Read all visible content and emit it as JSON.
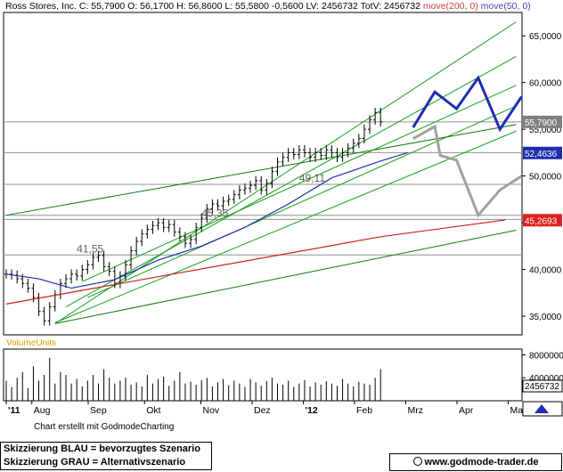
{
  "header": {
    "name": "Ross Stores, Inc.",
    "c": "C: 55,7900",
    "o": "O: 56,1700",
    "h": "H: 56,8600",
    "l": "L: 55,5800",
    "chg": "-0,5600",
    "lv": "LV: 2456732",
    "totv": "TotV: 2456732",
    "ma200": "move(200, 0)",
    "ma50": "move(50, 0)"
  },
  "chart_data": {
    "type": "line",
    "price_axis": {
      "ylim": [
        33,
        67.5
      ],
      "ticks": [
        35,
        40,
        45,
        50,
        55,
        60,
        65
      ],
      "tick_labels": [
        "35,0000",
        "40,0000",
        "45,0000",
        "50,0000",
        "55,0000",
        "60,0000",
        "65,0000"
      ]
    },
    "volume_axis": {
      "ylim": [
        0,
        9000000
      ],
      "ticks": [
        4000000,
        8000000
      ],
      "tick_labels": [
        "4000000",
        "8000000"
      ],
      "label": "VolumeUnits",
      "last_label": "2456732"
    },
    "x_labels": [
      "'11",
      "Aug",
      "Sep",
      "Okt",
      "Nov",
      "Dez",
      "'12",
      "Feb",
      "Mrz",
      "Apr",
      "Mai"
    ],
    "price_labels": [
      {
        "text": "55,7900",
        "value": 55.79,
        "color": "#808080"
      },
      {
        "text": "52,4636",
        "value": 52.4636,
        "color": "#1f2db0"
      },
      {
        "text": "45,2693",
        "value": 45.2693,
        "color": "#e02020"
      }
    ],
    "annotations": [
      {
        "text": "41,55",
        "value": 41.55
      },
      {
        "text": "45,35",
        "value": 45.35
      },
      {
        "text": "49,11",
        "value": 49.11
      }
    ],
    "horizontal_levels": [
      41.55,
      45.35,
      45.8,
      49.11,
      52.5,
      55.79
    ],
    "price_series": [
      39.5,
      39.4,
      39.0,
      38.5,
      38.0,
      37.0,
      35.5,
      34.5,
      36.0,
      37.3,
      38.5,
      39.0,
      39.5,
      39.3,
      40.0,
      40.5,
      41.3,
      41.5,
      40.3,
      39.8,
      38.5,
      39.3,
      40.5,
      42.0,
      43.0,
      43.8,
      44.3,
      44.7,
      45.0,
      44.5,
      44.8,
      44.0,
      43.5,
      42.8,
      43.2,
      44.5,
      45.5,
      46.5,
      47.0,
      46.8,
      47.3,
      47.5,
      48.0,
      48.5,
      48.7,
      49.0,
      49.5,
      48.5,
      49.2,
      50.5,
      51.5,
      52.0,
      52.5,
      52.3,
      52.8,
      52.5,
      52.0,
      52.5,
      52.2,
      52.8,
      52.5,
      52.0,
      52.5,
      53.0,
      53.5,
      54.0,
      55.0,
      56.0,
      56.8,
      55.8
    ],
    "series": [
      {
        "name": "move(200, 0)",
        "color": "#cc2020",
        "x": [
          0,
          69,
          92
        ],
        "y": [
          36.3,
          43.5,
          45.3
        ]
      },
      {
        "name": "move(50, 0)",
        "color": "#1f2db0",
        "x": [
          0,
          6,
          12,
          20,
          28,
          36,
          44,
          52,
          60,
          69,
          74
        ],
        "y": [
          39.5,
          39.0,
          38.0,
          38.9,
          41.0,
          42.5,
          44.5,
          47.0,
          49.8,
          51.6,
          52.5
        ]
      },
      {
        "name": "Skizzierung BLAU",
        "color": "#1f2db0",
        "x": [
          75,
          79,
          83,
          87,
          91,
          95
        ],
        "y": [
          55.2,
          59.0,
          57.2,
          60.5,
          55.0,
          58.5
        ]
      },
      {
        "name": "Skizzierung GRAU",
        "color": "#a0a0a0",
        "x": [
          75,
          79,
          80,
          83,
          87,
          91,
          95
        ],
        "y": [
          54.0,
          55.3,
          52.2,
          51.7,
          45.8,
          48.5,
          50.0
        ]
      }
    ],
    "trendlines": [
      {
        "color": "#19a019",
        "x": [
          9,
          94
        ],
        "y": [
          34.2,
          66.5
        ]
      },
      {
        "color": "#19a019",
        "x": [
          11,
          94
        ],
        "y": [
          36.0,
          62.8
        ]
      },
      {
        "color": "#19a019",
        "x": [
          14,
          94
        ],
        "y": [
          38.7,
          59.7
        ]
      },
      {
        "color": "#19a019",
        "x": [
          15,
          94
        ],
        "y": [
          37.0,
          57.5
        ]
      },
      {
        "color": "#19a019",
        "x": [
          9,
          94
        ],
        "y": [
          34.3,
          54.8
        ]
      },
      {
        "color": "#0d7a0d",
        "x": [
          0,
          94
        ],
        "y": [
          45.8,
          55.5
        ]
      },
      {
        "color": "#0d7a0d",
        "x": [
          9,
          94
        ],
        "y": [
          34.2,
          44.2
        ]
      }
    ],
    "volume_bars": [
      3.5,
      2.4,
      4.0,
      5.0,
      2.2,
      6.0,
      3.5,
      4.5,
      7.5,
      3.0,
      5.0,
      4.5,
      3.0,
      3.8,
      2.5,
      3.5,
      4.5,
      3.0,
      5.5,
      4.0,
      3.0,
      3.5,
      4.0,
      2.8,
      3.2,
      2.5,
      4.5,
      3.0,
      3.8,
      4.2,
      2.6,
      3.5,
      5.0,
      3.0,
      3.3,
      2.8,
      3.6,
      4.0,
      2.5,
      3.2,
      3.8,
      2.7,
      3.5,
      3.0,
      2.4,
      3.8,
      3.2,
      2.6,
      3.4,
      4.0,
      3.0,
      2.8,
      3.5,
      2.4,
      3.0,
      3.6,
      2.5,
      3.2,
      2.8,
      3.4,
      3.0,
      2.6,
      3.8,
      3.0,
      2.5,
      3.3,
      3.0,
      2.8,
      4.0,
      5.5
    ]
  },
  "footer": {
    "credit": "Chart erstellt mit GodmodeCharting",
    "legend_blue": "Skizzierung BLAU = bevorzugtes Szenario",
    "legend_grey": "Skizzierung GRAU = Alternativszenario",
    "site": "www.godmode-trader.de"
  }
}
